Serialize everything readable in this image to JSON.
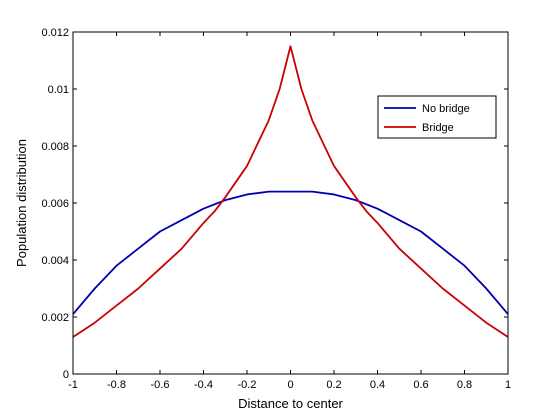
{
  "chart_data": {
    "type": "line",
    "title": "",
    "xlabel": "Distance to center",
    "ylabel": "Population distribution",
    "xlim": [
      -1,
      1
    ],
    "ylim": [
      0,
      0.012
    ],
    "xticks": [
      -1,
      -0.8,
      -0.6,
      -0.4,
      -0.2,
      0,
      0.2,
      0.4,
      0.6,
      0.8,
      1
    ],
    "xtick_labels": [
      "-1",
      "-0.8",
      "-0.6",
      "-0.4",
      "-0.2",
      "0",
      "0.2",
      "0.4",
      "0.6",
      "0.8",
      "1"
    ],
    "yticks": [
      0,
      0.002,
      0.004,
      0.006,
      0.008,
      0.01,
      0.012
    ],
    "ytick_labels": [
      "0",
      "0.002",
      "0.004",
      "0.006",
      "0.008",
      "0.01",
      "0.012"
    ],
    "grid": false,
    "legend_position": "top-right",
    "series": [
      {
        "name": "No bridge",
        "color": "#0000b0",
        "x": [
          -1,
          -0.9,
          -0.8,
          -0.7,
          -0.6,
          -0.5,
          -0.4,
          -0.3,
          -0.2,
          -0.1,
          0,
          0.1,
          0.2,
          0.3,
          0.4,
          0.5,
          0.6,
          0.7,
          0.8,
          0.9,
          1
        ],
        "y": [
          0.0021,
          0.003,
          0.0038,
          0.0044,
          0.005,
          0.0054,
          0.0058,
          0.0061,
          0.0063,
          0.0064,
          0.0064,
          0.0064,
          0.0063,
          0.0061,
          0.0058,
          0.0054,
          0.005,
          0.0044,
          0.0038,
          0.003,
          0.0021
        ]
      },
      {
        "name": "Bridge",
        "color": "#cc0000",
        "x": [
          -1,
          -0.9,
          -0.8,
          -0.7,
          -0.6,
          -0.5,
          -0.4,
          -0.35,
          -0.3,
          -0.2,
          -0.1,
          -0.05,
          0,
          0.05,
          0.1,
          0.2,
          0.3,
          0.35,
          0.4,
          0.5,
          0.6,
          0.7,
          0.8,
          0.9,
          1
        ],
        "y": [
          0.0013,
          0.0018,
          0.0024,
          0.003,
          0.0037,
          0.0044,
          0.0053,
          0.0057,
          0.0062,
          0.0073,
          0.0089,
          0.01,
          0.0115,
          0.01,
          0.0089,
          0.0073,
          0.0062,
          0.0057,
          0.0053,
          0.0044,
          0.0037,
          0.003,
          0.0024,
          0.0018,
          0.0013
        ]
      }
    ]
  }
}
